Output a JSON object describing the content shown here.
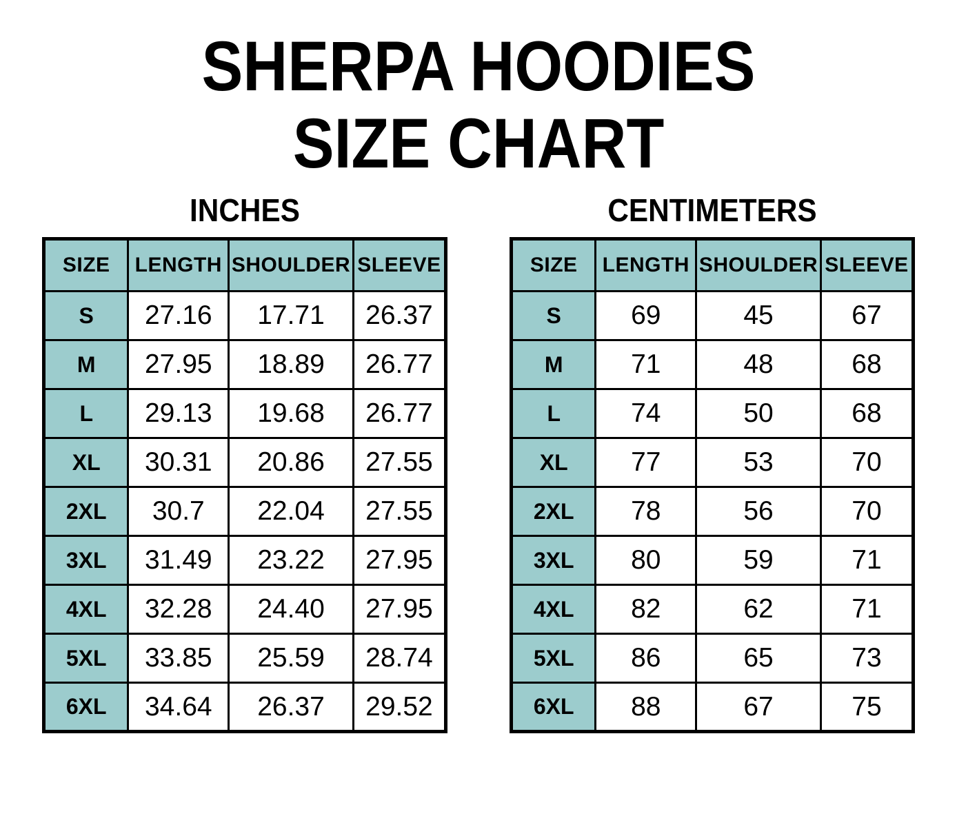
{
  "page": {
    "title_line1": "SHERPA HOODIES",
    "title_line2": "SIZE CHART"
  },
  "colors": {
    "header_bg": "#9CCCCD",
    "border": "#000000",
    "page_bg": "#FFFFFF",
    "text": "#000000"
  },
  "chart_data": [
    {
      "type": "table",
      "title": "INCHES",
      "columns": [
        "SIZE",
        "LENGTH",
        "SHOULDER",
        "SLEEVE"
      ],
      "rows": [
        [
          "S",
          "27.16",
          "17.71",
          "26.37"
        ],
        [
          "M",
          "27.95",
          "18.89",
          "26.77"
        ],
        [
          "L",
          "29.13",
          "19.68",
          "26.77"
        ],
        [
          "XL",
          "30.31",
          "20.86",
          "27.55"
        ],
        [
          "2XL",
          "30.7",
          "22.04",
          "27.55"
        ],
        [
          "3XL",
          "31.49",
          "23.22",
          "27.95"
        ],
        [
          "4XL",
          "32.28",
          "24.40",
          "27.95"
        ],
        [
          "5XL",
          "33.85",
          "25.59",
          "28.74"
        ],
        [
          "6XL",
          "34.64",
          "26.37",
          "29.52"
        ]
      ]
    },
    {
      "type": "table",
      "title": "CENTIMETERS",
      "columns": [
        "SIZE",
        "LENGTH",
        "SHOULDER",
        "SLEEVE"
      ],
      "rows": [
        [
          "S",
          "69",
          "45",
          "67"
        ],
        [
          "M",
          "71",
          "48",
          "68"
        ],
        [
          "L",
          "74",
          "50",
          "68"
        ],
        [
          "XL",
          "77",
          "53",
          "70"
        ],
        [
          "2XL",
          "78",
          "56",
          "70"
        ],
        [
          "3XL",
          "80",
          "59",
          "71"
        ],
        [
          "4XL",
          "82",
          "62",
          "71"
        ],
        [
          "5XL",
          "86",
          "65",
          "73"
        ],
        [
          "6XL",
          "88",
          "67",
          "75"
        ]
      ]
    }
  ]
}
